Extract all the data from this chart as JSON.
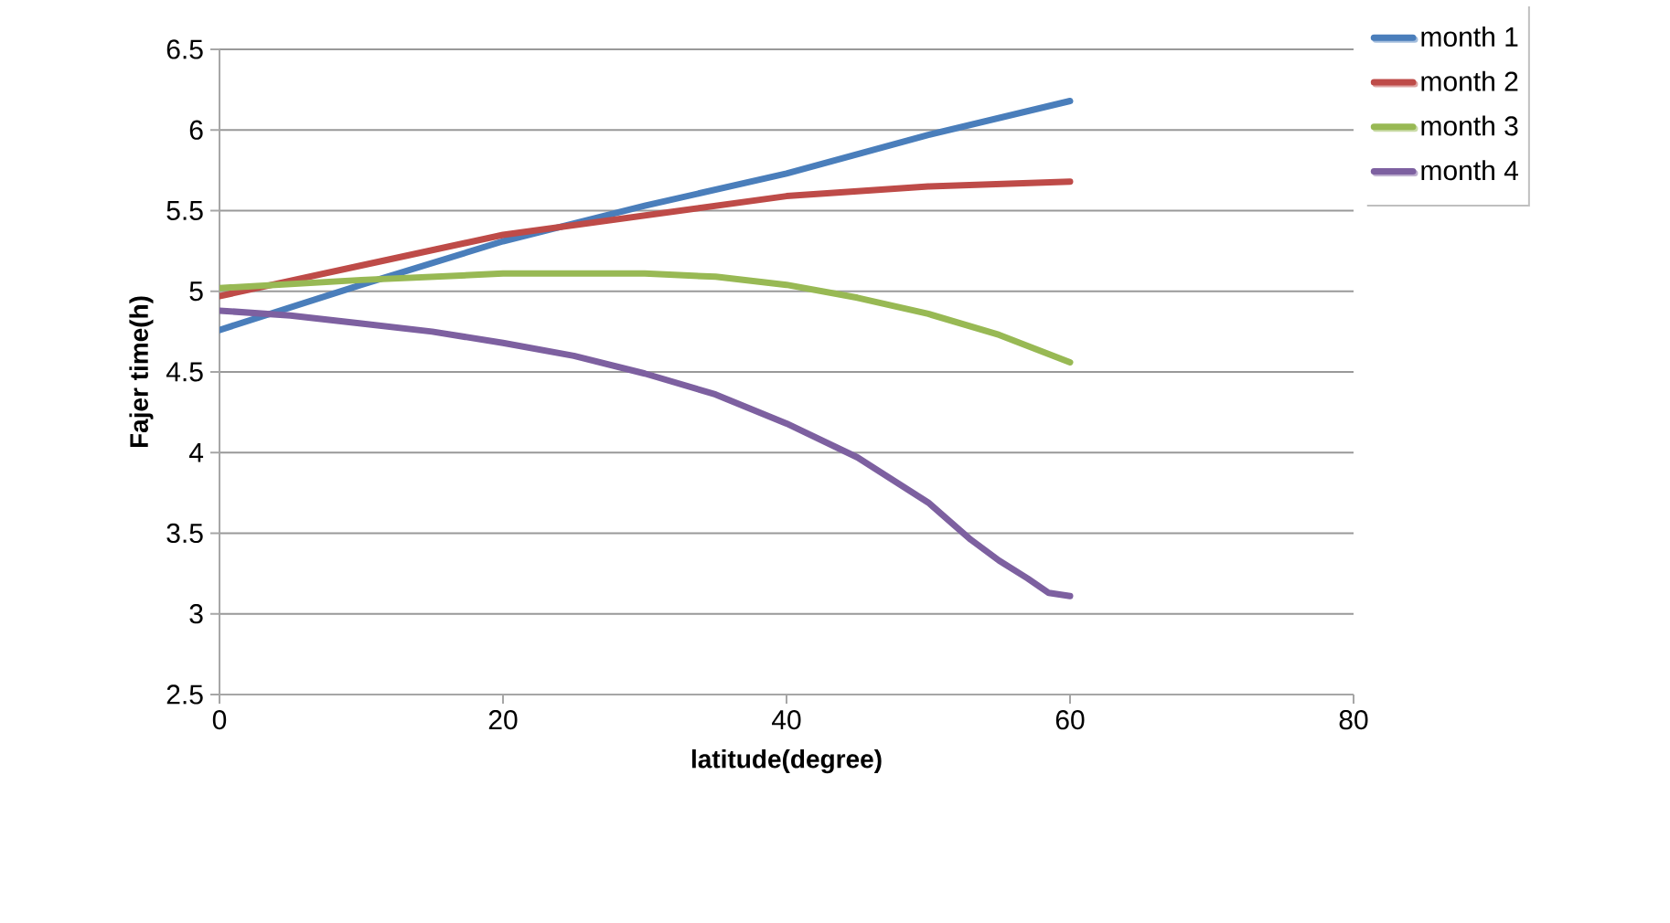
{
  "chart_data": {
    "type": "line",
    "xlabel": "latitude(degree)",
    "ylabel": "Fajer time(h)",
    "xlim": [
      0,
      80
    ],
    "xticks": [
      0,
      20,
      40,
      60,
      80
    ],
    "ylim": [
      2.5,
      6.5
    ],
    "yticks": [
      2.5,
      3,
      3.5,
      4,
      4.5,
      5,
      5.5,
      6,
      6.5
    ],
    "grid": "y",
    "legend": "top right",
    "marker": "none",
    "line_style": "solid",
    "series": [
      {
        "name": "month 1",
        "color": "#4a7ebb",
        "x": [
          0,
          10,
          20,
          30,
          40,
          50,
          60
        ],
        "values": [
          4.76,
          5.04,
          5.31,
          5.53,
          5.73,
          5.97,
          6.18
        ]
      },
      {
        "name": "month 2",
        "color": "#be4b48",
        "x": [
          0,
          10,
          20,
          30,
          40,
          50,
          60
        ],
        "values": [
          4.97,
          5.16,
          5.35,
          5.47,
          5.59,
          5.65,
          5.68
        ]
      },
      {
        "name": "month 3",
        "color": "#98b954",
        "x": [
          0,
          10,
          20,
          25,
          30,
          35,
          40,
          45,
          50,
          55,
          60
        ],
        "values": [
          5.02,
          5.07,
          5.11,
          5.11,
          5.11,
          5.09,
          5.04,
          4.96,
          4.86,
          4.73,
          4.56
        ]
      },
      {
        "name": "month 4",
        "color": "#7d60a0",
        "x": [
          0,
          5,
          10,
          15,
          20,
          25,
          30,
          35,
          40,
          45,
          50,
          53,
          55,
          57,
          58.5,
          60
        ],
        "values": [
          4.88,
          4.85,
          4.8,
          4.75,
          4.68,
          4.6,
          4.49,
          4.36,
          4.18,
          3.97,
          3.69,
          3.46,
          3.33,
          3.22,
          3.13,
          3.11
        ]
      }
    ]
  }
}
